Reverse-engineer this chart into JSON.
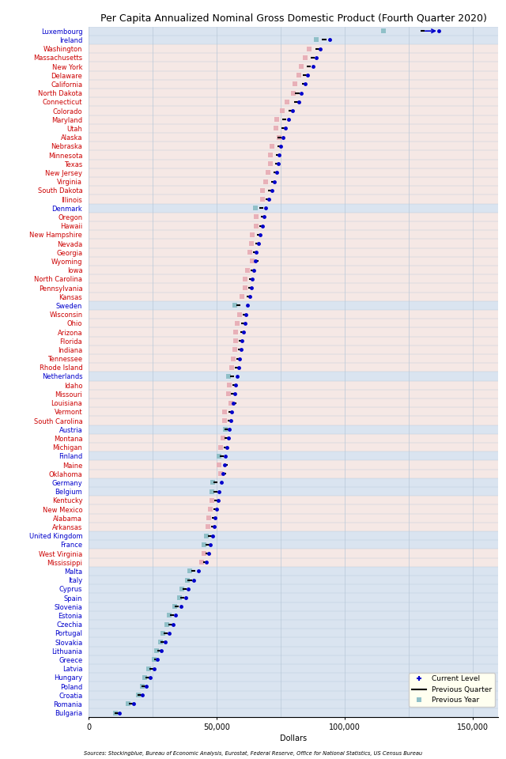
{
  "title": "Per Capita Annualized Nominal Gross Domestic Product (Fourth Quarter 2020)",
  "xlabel": "Dollars",
  "source": "Sources: Stockingblue, Bureau of Economic Analysis, Eurostat, Federal Reserve, Office for National Statistics, US Census Bureau",
  "entries": [
    {
      "name": "Luxembourg",
      "color": "#0000cc",
      "current": 136700,
      "prev_quarter": 130500,
      "prev_year": 115000,
      "is_eu": true
    },
    {
      "name": "Ireland",
      "color": "#0000cc",
      "current": 94000,
      "prev_quarter": 92000,
      "prev_year": 89000,
      "is_eu": true
    },
    {
      "name": "Washington",
      "color": "#cc0000",
      "current": 90500,
      "prev_quarter": 89500,
      "prev_year": 86000,
      "is_eu": false
    },
    {
      "name": "Massachusetts",
      "color": "#cc0000",
      "current": 89000,
      "prev_quarter": 87500,
      "prev_year": 84500,
      "is_eu": false
    },
    {
      "name": "New York",
      "color": "#cc0000",
      "current": 87500,
      "prev_quarter": 86000,
      "prev_year": 83000,
      "is_eu": false
    },
    {
      "name": "Delaware",
      "color": "#cc0000",
      "current": 85500,
      "prev_quarter": 84500,
      "prev_year": 82000,
      "is_eu": false
    },
    {
      "name": "California",
      "color": "#cc0000",
      "current": 84500,
      "prev_quarter": 84000,
      "prev_year": 80500,
      "is_eu": false
    },
    {
      "name": "North Dakota",
      "color": "#cc0000",
      "current": 83000,
      "prev_quarter": 81500,
      "prev_year": 80000,
      "is_eu": false
    },
    {
      "name": "Connecticut",
      "color": "#cc0000",
      "current": 82000,
      "prev_quarter": 81000,
      "prev_year": 77500,
      "is_eu": false
    },
    {
      "name": "Colorado",
      "color": "#cc0000",
      "current": 79500,
      "prev_quarter": 79000,
      "prev_year": 75500,
      "is_eu": false
    },
    {
      "name": "Maryland",
      "color": "#cc0000",
      "current": 78000,
      "prev_quarter": 76500,
      "prev_year": 73500,
      "is_eu": false
    },
    {
      "name": "Utah",
      "color": "#cc0000",
      "current": 77000,
      "prev_quarter": 76000,
      "prev_year": 73000,
      "is_eu": false
    },
    {
      "name": "Alaska",
      "color": "#cc0000",
      "current": 76000,
      "prev_quarter": 74500,
      "prev_year": 74500,
      "is_eu": false
    },
    {
      "name": "Nebraska",
      "color": "#cc0000",
      "current": 75000,
      "prev_quarter": 74500,
      "prev_year": 71500,
      "is_eu": false
    },
    {
      "name": "Minnesota",
      "color": "#cc0000",
      "current": 74500,
      "prev_quarter": 74000,
      "prev_year": 71000,
      "is_eu": false
    },
    {
      "name": "Texas",
      "color": "#cc0000",
      "current": 74000,
      "prev_quarter": 73500,
      "prev_year": 71000,
      "is_eu": false
    },
    {
      "name": "New Jersey",
      "color": "#cc0000",
      "current": 73500,
      "prev_quarter": 73000,
      "prev_year": 70000,
      "is_eu": false
    },
    {
      "name": "Virginia",
      "color": "#cc0000",
      "current": 72500,
      "prev_quarter": 72000,
      "prev_year": 69000,
      "is_eu": false
    },
    {
      "name": "South Dakota",
      "color": "#cc0000",
      "current": 71500,
      "prev_quarter": 71000,
      "prev_year": 68000,
      "is_eu": false
    },
    {
      "name": "Illinois",
      "color": "#cc0000",
      "current": 70500,
      "prev_quarter": 70000,
      "prev_year": 68000,
      "is_eu": false
    },
    {
      "name": "Denmark",
      "color": "#0000cc",
      "current": 69000,
      "prev_quarter": 67500,
      "prev_year": 65000,
      "is_eu": true
    },
    {
      "name": "Oregon",
      "color": "#cc0000",
      "current": 68500,
      "prev_quarter": 68000,
      "prev_year": 65500,
      "is_eu": false
    },
    {
      "name": "Hawaii",
      "color": "#cc0000",
      "current": 68000,
      "prev_quarter": 67500,
      "prev_year": 65500,
      "is_eu": false
    },
    {
      "name": "New Hampshire",
      "color": "#cc0000",
      "current": 67000,
      "prev_quarter": 66500,
      "prev_year": 64000,
      "is_eu": false
    },
    {
      "name": "Nevada",
      "color": "#cc0000",
      "current": 66500,
      "prev_quarter": 66000,
      "prev_year": 63500,
      "is_eu": false
    },
    {
      "name": "Georgia",
      "color": "#cc0000",
      "current": 65500,
      "prev_quarter": 65000,
      "prev_year": 63000,
      "is_eu": false
    },
    {
      "name": "Wyoming",
      "color": "#cc0000",
      "current": 65000,
      "prev_quarter": 65500,
      "prev_year": 64000,
      "is_eu": false
    },
    {
      "name": "Iowa",
      "color": "#cc0000",
      "current": 64500,
      "prev_quarter": 64000,
      "prev_year": 62000,
      "is_eu": false
    },
    {
      "name": "North Carolina",
      "color": "#cc0000",
      "current": 64000,
      "prev_quarter": 63500,
      "prev_year": 61000,
      "is_eu": false
    },
    {
      "name": "Pennsylvania",
      "color": "#cc0000",
      "current": 63500,
      "prev_quarter": 63000,
      "prev_year": 61000,
      "is_eu": false
    },
    {
      "name": "Kansas",
      "color": "#cc0000",
      "current": 63000,
      "prev_quarter": 62500,
      "prev_year": 60000,
      "is_eu": false
    },
    {
      "name": "Sweden",
      "color": "#0000cc",
      "current": 62000,
      "prev_quarter": 58500,
      "prev_year": 57000,
      "is_eu": true
    },
    {
      "name": "Wisconsin",
      "color": "#cc0000",
      "current": 61500,
      "prev_quarter": 61000,
      "prev_year": 59000,
      "is_eu": false
    },
    {
      "name": "Ohio",
      "color": "#cc0000",
      "current": 61000,
      "prev_quarter": 60500,
      "prev_year": 58000,
      "is_eu": false
    },
    {
      "name": "Arizona",
      "color": "#cc0000",
      "current": 60500,
      "prev_quarter": 60000,
      "prev_year": 57500,
      "is_eu": false
    },
    {
      "name": "Florida",
      "color": "#cc0000",
      "current": 60000,
      "prev_quarter": 59500,
      "prev_year": 57500,
      "is_eu": false
    },
    {
      "name": "Indiana",
      "color": "#cc0000",
      "current": 59500,
      "prev_quarter": 59000,
      "prev_year": 57000,
      "is_eu": false
    },
    {
      "name": "Tennessee",
      "color": "#cc0000",
      "current": 59000,
      "prev_quarter": 58500,
      "prev_year": 56500,
      "is_eu": false
    },
    {
      "name": "Rhode Island",
      "color": "#cc0000",
      "current": 58500,
      "prev_quarter": 58000,
      "prev_year": 56000,
      "is_eu": false
    },
    {
      "name": "Netherlands",
      "color": "#0000cc",
      "current": 58000,
      "prev_quarter": 56000,
      "prev_year": 54500,
      "is_eu": true
    },
    {
      "name": "Idaho",
      "color": "#cc0000",
      "current": 57500,
      "prev_quarter": 57000,
      "prev_year": 55000,
      "is_eu": false
    },
    {
      "name": "Missouri",
      "color": "#cc0000",
      "current": 57000,
      "prev_quarter": 56500,
      "prev_year": 54500,
      "is_eu": false
    },
    {
      "name": "Louisiana",
      "color": "#cc0000",
      "current": 56500,
      "prev_quarter": 57000,
      "prev_year": 55500,
      "is_eu": false
    },
    {
      "name": "Vermont",
      "color": "#cc0000",
      "current": 56000,
      "prev_quarter": 55500,
      "prev_year": 53000,
      "is_eu": false
    },
    {
      "name": "South Carolina",
      "color": "#cc0000",
      "current": 55500,
      "prev_quarter": 55000,
      "prev_year": 53000,
      "is_eu": false
    },
    {
      "name": "Austria",
      "color": "#0000cc",
      "current": 55000,
      "prev_quarter": 54000,
      "prev_year": 53500,
      "is_eu": true
    },
    {
      "name": "Montana",
      "color": "#cc0000",
      "current": 54500,
      "prev_quarter": 54000,
      "prev_year": 52500,
      "is_eu": false
    },
    {
      "name": "Michigan",
      "color": "#cc0000",
      "current": 54000,
      "prev_quarter": 53500,
      "prev_year": 51500,
      "is_eu": false
    },
    {
      "name": "Finland",
      "color": "#0000cc",
      "current": 53500,
      "prev_quarter": 52000,
      "prev_year": 51000,
      "is_eu": true
    },
    {
      "name": "Maine",
      "color": "#cc0000",
      "current": 53000,
      "prev_quarter": 53500,
      "prev_year": 51000,
      "is_eu": false
    },
    {
      "name": "Oklahoma",
      "color": "#cc0000",
      "current": 52500,
      "prev_quarter": 53000,
      "prev_year": 51500,
      "is_eu": false
    },
    {
      "name": "Germany",
      "color": "#0000cc",
      "current": 52000,
      "prev_quarter": 49500,
      "prev_year": 48500,
      "is_eu": true
    },
    {
      "name": "Belgium",
      "color": "#0000cc",
      "current": 51000,
      "prev_quarter": 49500,
      "prev_year": 48000,
      "is_eu": true
    },
    {
      "name": "Kentucky",
      "color": "#cc0000",
      "current": 50500,
      "prev_quarter": 50000,
      "prev_year": 48000,
      "is_eu": false
    },
    {
      "name": "New Mexico",
      "color": "#cc0000",
      "current": 50000,
      "prev_quarter": 49500,
      "prev_year": 47500,
      "is_eu": false
    },
    {
      "name": "Alabama",
      "color": "#cc0000",
      "current": 49500,
      "prev_quarter": 49000,
      "prev_year": 47000,
      "is_eu": false
    },
    {
      "name": "Arkansas",
      "color": "#cc0000",
      "current": 49000,
      "prev_quarter": 48500,
      "prev_year": 46500,
      "is_eu": false
    },
    {
      "name": "United Kingdom",
      "color": "#0000cc",
      "current": 48500,
      "prev_quarter": 47500,
      "prev_year": 46000,
      "is_eu": true
    },
    {
      "name": "France",
      "color": "#0000cc",
      "current": 47500,
      "prev_quarter": 46500,
      "prev_year": 45000,
      "is_eu": true
    },
    {
      "name": "West Virginia",
      "color": "#cc0000",
      "current": 47000,
      "prev_quarter": 46500,
      "prev_year": 45000,
      "is_eu": false
    },
    {
      "name": "Mississippi",
      "color": "#cc0000",
      "current": 46000,
      "prev_quarter": 45500,
      "prev_year": 44000,
      "is_eu": false
    },
    {
      "name": "Malta",
      "color": "#0000cc",
      "current": 43000,
      "prev_quarter": 41000,
      "prev_year": 39500,
      "is_eu": true
    },
    {
      "name": "Italy",
      "color": "#0000cc",
      "current": 41000,
      "prev_quarter": 39500,
      "prev_year": 38500,
      "is_eu": true
    },
    {
      "name": "Cyprus",
      "color": "#0000cc",
      "current": 39000,
      "prev_quarter": 37500,
      "prev_year": 36500,
      "is_eu": true
    },
    {
      "name": "Spain",
      "color": "#0000cc",
      "current": 38000,
      "prev_quarter": 36500,
      "prev_year": 35500,
      "is_eu": true
    },
    {
      "name": "Slovenia",
      "color": "#0000cc",
      "current": 36000,
      "prev_quarter": 34500,
      "prev_year": 33500,
      "is_eu": true
    },
    {
      "name": "Estonia",
      "color": "#0000cc",
      "current": 34000,
      "prev_quarter": 32500,
      "prev_year": 31500,
      "is_eu": true
    },
    {
      "name": "Czechia",
      "color": "#0000cc",
      "current": 33000,
      "prev_quarter": 32000,
      "prev_year": 30500,
      "is_eu": true
    },
    {
      "name": "Portugal",
      "color": "#0000cc",
      "current": 31500,
      "prev_quarter": 30000,
      "prev_year": 29000,
      "is_eu": true
    },
    {
      "name": "Slovakia",
      "color": "#0000cc",
      "current": 30000,
      "prev_quarter": 29000,
      "prev_year": 28000,
      "is_eu": true
    },
    {
      "name": "Lithuania",
      "color": "#0000cc",
      "current": 28500,
      "prev_quarter": 27500,
      "prev_year": 26500,
      "is_eu": true
    },
    {
      "name": "Greece",
      "color": "#0000cc",
      "current": 27000,
      "prev_quarter": 26500,
      "prev_year": 25500,
      "is_eu": true
    },
    {
      "name": "Latvia",
      "color": "#0000cc",
      "current": 25500,
      "prev_quarter": 24500,
      "prev_year": 23500,
      "is_eu": true
    },
    {
      "name": "Hungary",
      "color": "#0000cc",
      "current": 24000,
      "prev_quarter": 23000,
      "prev_year": 22000,
      "is_eu": true
    },
    {
      "name": "Poland",
      "color": "#0000cc",
      "current": 22500,
      "prev_quarter": 21500,
      "prev_year": 21000,
      "is_eu": true
    },
    {
      "name": "Croatia",
      "color": "#0000cc",
      "current": 21000,
      "prev_quarter": 20000,
      "prev_year": 19500,
      "is_eu": true
    },
    {
      "name": "Romania",
      "color": "#0000cc",
      "current": 17500,
      "prev_quarter": 16500,
      "prev_year": 15500,
      "is_eu": true
    },
    {
      "name": "Bulgaria",
      "color": "#0000cc",
      "current": 12000,
      "prev_quarter": 11000,
      "prev_year": 10500,
      "is_eu": true
    }
  ],
  "xlim": [
    0,
    160000
  ],
  "xticks": [
    0,
    50000,
    100000,
    150000
  ],
  "row_bg_us": "#f5e8e5",
  "row_bg_eu": "#dae4f0",
  "plot_bg": "#e8eef5",
  "grid_color": "#b8c8d8",
  "dot_color": "#0000cc",
  "prev_y_color_us": "#e8b0b8",
  "prev_y_color_eu": "#90c0c8",
  "legend_bg": "#fffff0",
  "title_fontsize": 9,
  "label_fontsize": 6.0,
  "tick_fontsize": 7
}
